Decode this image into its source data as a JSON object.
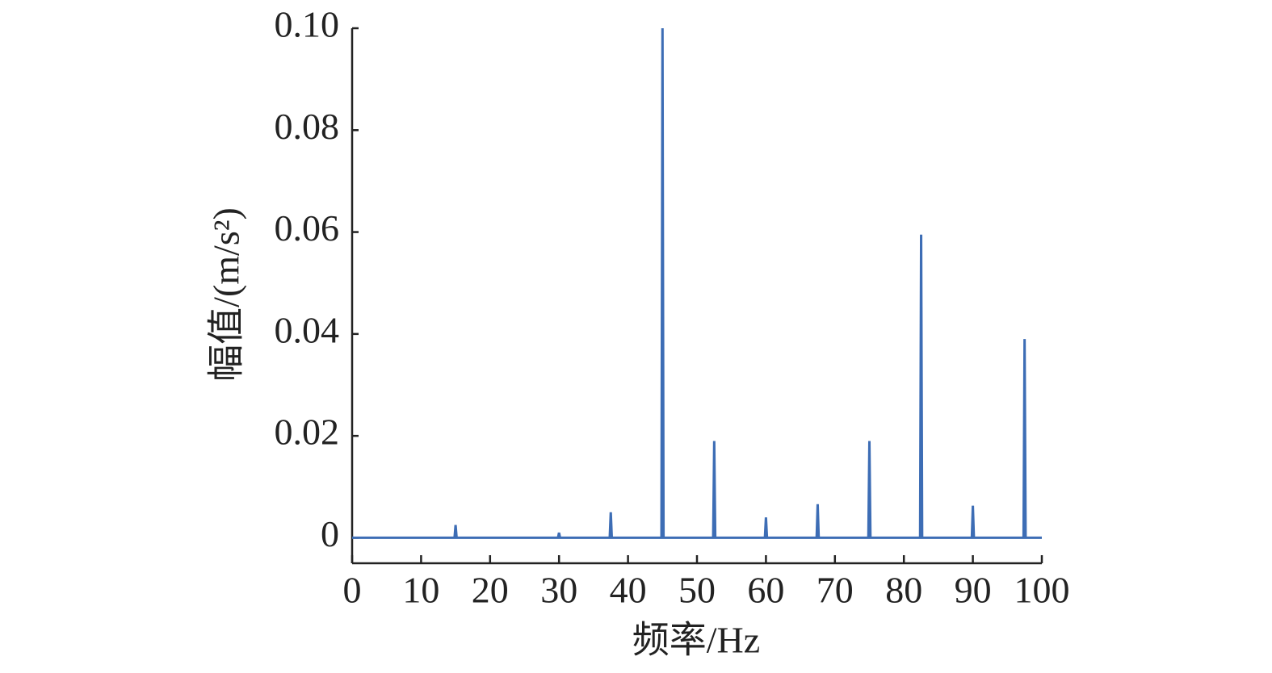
{
  "chart_data": {
    "type": "line",
    "xlabel": "频率/Hz",
    "ylabel": "幅值/(m/s²)",
    "x": [
      0,
      14.85,
      15,
      15.15,
      29.85,
      30,
      30.15,
      37.35,
      37.5,
      37.65,
      44.85,
      45,
      45.15,
      52.35,
      52.5,
      52.65,
      59.85,
      60,
      60.15,
      67.35,
      67.5,
      67.65,
      74.85,
      75,
      75.15,
      82.35,
      82.5,
      82.65,
      89.85,
      90,
      90.15,
      97.35,
      97.5,
      97.65,
      100
    ],
    "series": [
      {
        "color": "#3d6db5",
        "values": [
          0,
          0,
          0.0025,
          0,
          0,
          0.001,
          0,
          0,
          0.005,
          0,
          0,
          0.1,
          0,
          0,
          0.019,
          0,
          0,
          0.004,
          0,
          0,
          0.0066,
          0,
          0,
          0.019,
          0,
          0,
          0.0595,
          0,
          0,
          0.0063,
          0,
          0,
          0.039,
          0,
          0
        ]
      }
    ],
    "xlim": [
      0,
      100
    ],
    "xticks": [
      0,
      10,
      20,
      30,
      40,
      50,
      60,
      70,
      80,
      90,
      100
    ],
    "ylim": [
      -0.005,
      0.1
    ],
    "yticks": [
      0,
      0.02,
      0.04,
      0.06,
      0.08,
      {
        "value": 0.1,
        "label": "0.10"
      }
    ]
  }
}
